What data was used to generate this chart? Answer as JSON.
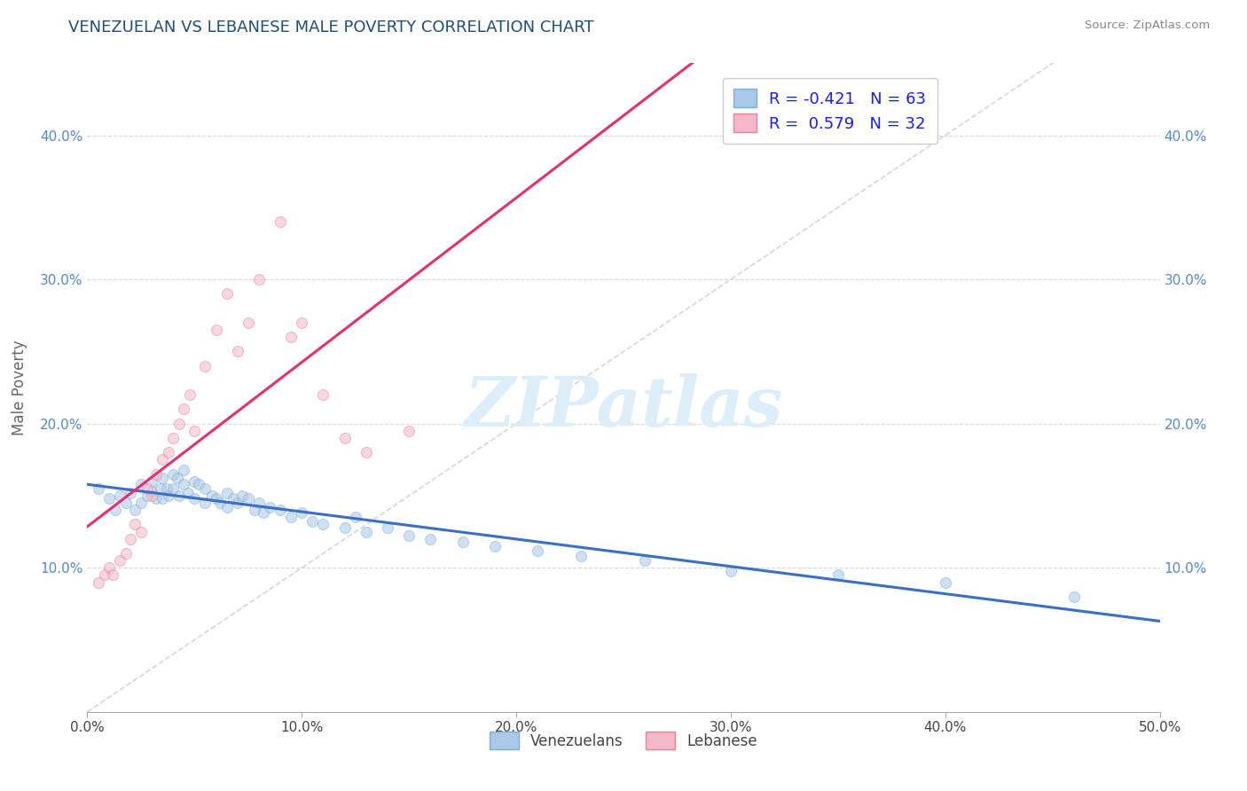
{
  "title": "VENEZUELAN VS LEBANESE MALE POVERTY CORRELATION CHART",
  "source": "Source: ZipAtlas.com",
  "ylabel": "Male Poverty",
  "xlim": [
    0.0,
    0.5
  ],
  "ylim": [
    0.0,
    0.45
  ],
  "xticks": [
    0.0,
    0.1,
    0.2,
    0.3,
    0.4,
    0.5
  ],
  "xtick_labels": [
    "0.0%",
    "10.0%",
    "20.0%",
    "30.0%",
    "40.0%",
    "50.0%"
  ],
  "yticks": [
    0.1,
    0.2,
    0.3,
    0.4
  ],
  "ytick_labels": [
    "10.0%",
    "20.0%",
    "30.0%",
    "40.0%"
  ],
  "venezuelan_color": "#aac8e8",
  "lebanese_color": "#f4b8c8",
  "venezuelan_edge": "#7aafd4",
  "lebanese_edge": "#e8829a",
  "trend_ven_color": "#3a6fc4",
  "trend_leb_color": "#e0336e",
  "diag_color": "#cccccc",
  "R_venezuelan": -0.421,
  "N_venezuelan": 63,
  "R_lebanese": 0.579,
  "N_lebanese": 32,
  "venezuelan_x": [
    0.005,
    0.01,
    0.013,
    0.015,
    0.018,
    0.02,
    0.022,
    0.025,
    0.025,
    0.028,
    0.03,
    0.03,
    0.032,
    0.034,
    0.035,
    0.035,
    0.037,
    0.038,
    0.04,
    0.04,
    0.042,
    0.043,
    0.045,
    0.045,
    0.047,
    0.05,
    0.05,
    0.052,
    0.055,
    0.055,
    0.058,
    0.06,
    0.062,
    0.065,
    0.065,
    0.068,
    0.07,
    0.072,
    0.075,
    0.078,
    0.08,
    0.082,
    0.085,
    0.09,
    0.095,
    0.1,
    0.105,
    0.11,
    0.12,
    0.125,
    0.13,
    0.14,
    0.15,
    0.16,
    0.175,
    0.19,
    0.21,
    0.23,
    0.26,
    0.3,
    0.35,
    0.4,
    0.46
  ],
  "venezuelan_y": [
    0.155,
    0.148,
    0.14,
    0.15,
    0.145,
    0.152,
    0.14,
    0.158,
    0.145,
    0.15,
    0.16,
    0.153,
    0.148,
    0.155,
    0.162,
    0.148,
    0.155,
    0.15,
    0.165,
    0.155,
    0.162,
    0.15,
    0.168,
    0.158,
    0.152,
    0.16,
    0.148,
    0.158,
    0.155,
    0.145,
    0.15,
    0.148,
    0.145,
    0.152,
    0.142,
    0.148,
    0.145,
    0.15,
    0.148,
    0.14,
    0.145,
    0.138,
    0.142,
    0.14,
    0.135,
    0.138,
    0.132,
    0.13,
    0.128,
    0.135,
    0.125,
    0.128,
    0.122,
    0.12,
    0.118,
    0.115,
    0.112,
    0.108,
    0.105,
    0.098,
    0.095,
    0.09,
    0.08
  ],
  "lebanese_x": [
    0.005,
    0.008,
    0.01,
    0.012,
    0.015,
    0.018,
    0.02,
    0.022,
    0.025,
    0.028,
    0.03,
    0.032,
    0.035,
    0.038,
    0.04,
    0.043,
    0.045,
    0.048,
    0.05,
    0.055,
    0.06,
    0.065,
    0.07,
    0.075,
    0.08,
    0.09,
    0.095,
    0.1,
    0.11,
    0.12,
    0.13,
    0.15
  ],
  "lebanese_y": [
    0.09,
    0.095,
    0.1,
    0.095,
    0.105,
    0.11,
    0.12,
    0.13,
    0.125,
    0.155,
    0.15,
    0.165,
    0.175,
    0.18,
    0.19,
    0.2,
    0.21,
    0.22,
    0.195,
    0.24,
    0.265,
    0.29,
    0.25,
    0.27,
    0.3,
    0.34,
    0.26,
    0.27,
    0.22,
    0.19,
    0.18,
    0.195
  ],
  "background_color": "#ffffff",
  "grid_color": "#cccccc",
  "title_color": "#1f4e79",
  "axis_color": "#5588cc",
  "watermark_color": "#ddeef8",
  "marker_size": 75,
  "marker_alpha": 0.55
}
